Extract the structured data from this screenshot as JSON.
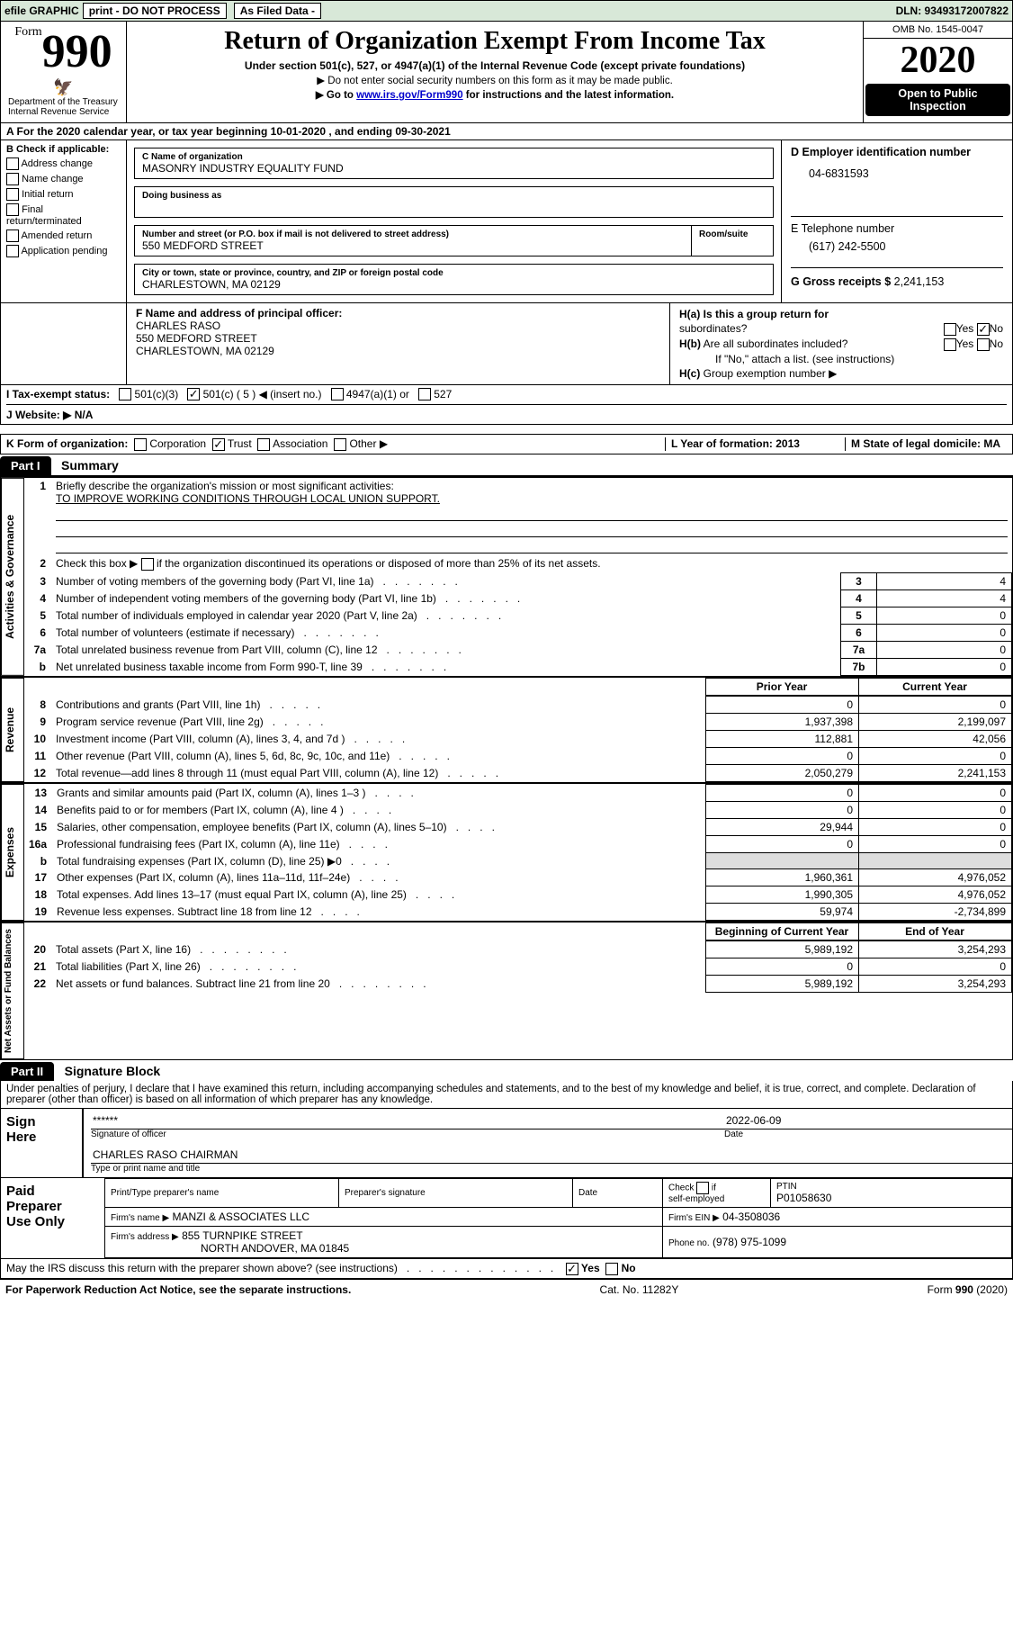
{
  "topbar": {
    "efile": "efile GRAPHIC",
    "print": "print - DO NOT PROCESS",
    "asFiled": "As Filed Data - ",
    "dln": "DLN: 93493172007822"
  },
  "formHeader": {
    "formWord": "Form",
    "formNumber": "990",
    "deptLine1": "Department of the Treasury",
    "deptLine2": "Internal Revenue Service",
    "title": "Return of Organization Exempt From Income Tax",
    "subtitle": "Under section 501(c), 527, or 4947(a)(1) of the Internal Revenue Code (except private foundations)",
    "warning": "▶ Do not enter social security numbers on this form as it may be made public.",
    "instructions": "▶ Go to www.irs.gov/Form990 for instructions and the latest information.",
    "omb": "OMB No. 1545-0047",
    "year": "2020",
    "inspectionLine1": "Open to Public",
    "inspectionLine2": "Inspection"
  },
  "rowA": "A   For the 2020 calendar year, or tax year beginning 10-01-2020   , and ending 09-30-2021",
  "sectionB": {
    "title": "B Check if applicable:",
    "checks": [
      "Address change",
      "Name change",
      "Initial return",
      "Final return/terminated",
      "Amended return",
      "Application pending"
    ]
  },
  "sectionC": {
    "labelName": "C Name of organization",
    "orgName": "MASONRY INDUSTRY EQUALITY FUND",
    "dbaLabel": "Doing business as",
    "streetLabel": "Number and street (or P.O. box if mail is not delivered to street address)",
    "roomLabel": "Room/suite",
    "street": "550 MEDFORD STREET",
    "cityLabel": "City or town, state or province, country, and ZIP or foreign postal code",
    "city": "CHARLESTOWN, MA  02129"
  },
  "sectionD": {
    "label": "D Employer identification number",
    "ein": "04-6831593"
  },
  "sectionE": {
    "label": "E Telephone number",
    "phone": "(617) 242-5500"
  },
  "sectionG": {
    "label": "G Gross receipts $",
    "value": "2,241,153"
  },
  "sectionF": {
    "label": "F   Name and address of principal officer:",
    "name": "CHARLES RASO",
    "street": "550 MEDFORD STREET",
    "city": "CHARLESTOWN, MA  02129"
  },
  "sectionH": {
    "ha": "H(a)  Is this a group return for",
    "haLine2": "subordinates?",
    "hb": "H(b)  Are all subordinates included?",
    "hbNote": "If \"No,\" attach a list. (see instructions)",
    "hc": "H(c)  Group exemption number ▶",
    "yes": "Yes",
    "no": "No"
  },
  "rowI": {
    "label": "I   Tax-exempt status:",
    "opt1": "501(c)(3)",
    "opt2": "501(c) ( 5 ) ◀ (insert no.)",
    "opt3": "4947(a)(1) or",
    "opt4": "527"
  },
  "rowJ": "J   Website: ▶   N/A",
  "rowK": {
    "label": "K Form of organization:",
    "opts": [
      "Corporation",
      "Trust",
      "Association",
      "Other ▶"
    ]
  },
  "rowL": "L Year of formation: 2013",
  "rowM": "M State of legal domicile: MA",
  "part1": {
    "label": "Part I",
    "title": "Summary"
  },
  "summary": {
    "line1": "Briefly describe the organization's mission or most significant activities:",
    "mission": "TO IMPROVE WORKING CONDITIONS THROUGH LOCAL UNION SUPPORT.",
    "line2": "Check this box ▶        if the organization discontinued its operations or disposed of more than 25% of its net assets.",
    "rows": [
      {
        "n": "3",
        "t": "Number of voting members of the governing body (Part VI, line 1a)",
        "rl": "3",
        "rv": "4"
      },
      {
        "n": "4",
        "t": "Number of independent voting members of the governing body (Part VI, line 1b)",
        "rl": "4",
        "rv": "4"
      },
      {
        "n": "5",
        "t": "Total number of individuals employed in calendar year 2020 (Part V, line 2a)",
        "rl": "5",
        "rv": "0"
      },
      {
        "n": "6",
        "t": "Total number of volunteers (estimate if necessary)",
        "rl": "6",
        "rv": "0"
      },
      {
        "n": "7a",
        "t": "Total unrelated business revenue from Part VIII, column (C), line 12",
        "rl": "7a",
        "rv": "0"
      },
      {
        "n": "b",
        "t": "Net unrelated business taxable income from Form 990-T, line 39",
        "rl": "7b",
        "rv": "0"
      }
    ],
    "priorHeader": "Prior Year",
    "currentHeader": "Current Year",
    "revenue": [
      {
        "n": "8",
        "t": "Contributions and grants (Part VIII, line 1h)",
        "p": "0",
        "c": "0"
      },
      {
        "n": "9",
        "t": "Program service revenue (Part VIII, line 2g)",
        "p": "1,937,398",
        "c": "2,199,097"
      },
      {
        "n": "10",
        "t": "Investment income (Part VIII, column (A), lines 3, 4, and 7d )",
        "p": "112,881",
        "c": "42,056"
      },
      {
        "n": "11",
        "t": "Other revenue (Part VIII, column (A), lines 5, 6d, 8c, 9c, 10c, and 11e)",
        "p": "0",
        "c": "0"
      },
      {
        "n": "12",
        "t": "Total revenue—add lines 8 through 11 (must equal Part VIII, column (A), line 12)",
        "p": "2,050,279",
        "c": "2,241,153"
      }
    ],
    "expenses": [
      {
        "n": "13",
        "t": "Grants and similar amounts paid (Part IX, column (A), lines 1–3 )",
        "p": "0",
        "c": "0"
      },
      {
        "n": "14",
        "t": "Benefits paid to or for members (Part IX, column (A), line 4 )",
        "p": "0",
        "c": "0"
      },
      {
        "n": "15",
        "t": "Salaries, other compensation, employee benefits (Part IX, column (A), lines 5–10)",
        "p": "29,944",
        "c": "0"
      },
      {
        "n": "16a",
        "t": "Professional fundraising fees (Part IX, column (A), line 11e)",
        "p": "0",
        "c": "0"
      },
      {
        "n": "b",
        "t": "Total fundraising expenses (Part IX, column (D), line 25) ▶0",
        "p": "",
        "c": ""
      },
      {
        "n": "17",
        "t": "Other expenses (Part IX, column (A), lines 11a–11d, 11f–24e)",
        "p": "1,960,361",
        "c": "4,976,052"
      },
      {
        "n": "18",
        "t": "Total expenses. Add lines 13–17 (must equal Part IX, column (A), line 25)",
        "p": "1,990,305",
        "c": "4,976,052"
      },
      {
        "n": "19",
        "t": "Revenue less expenses. Subtract line 18 from line 12",
        "p": "59,974",
        "c": "-2,734,899"
      }
    ],
    "balHeader1": "Beginning of Current Year",
    "balHeader2": "End of Year",
    "balances": [
      {
        "n": "20",
        "t": "Total assets (Part X, line 16)",
        "p": "5,989,192",
        "c": "3,254,293"
      },
      {
        "n": "21",
        "t": "Total liabilities (Part X, line 26)",
        "p": "0",
        "c": "0"
      },
      {
        "n": "22",
        "t": "Net assets or fund balances. Subtract line 21 from line 20",
        "p": "5,989,192",
        "c": "3,254,293"
      }
    ]
  },
  "vertLabels": {
    "ag": "Activities & Governance",
    "rev": "Revenue",
    "exp": "Expenses",
    "bal": "Net Assets or Fund Balances"
  },
  "part2": {
    "label": "Part II",
    "title": "Signature Block",
    "perjury": "Under penalties of perjury, I declare that I have examined this return, including accompanying schedules and statements, and to the best of my knowledge and belief, it is true, correct, and complete. Declaration of preparer (other than officer) is based on all information of which preparer has any knowledge."
  },
  "sign": {
    "label": "Sign Here",
    "stars": "******",
    "sigLabel": "Signature of officer",
    "date": "2022-06-09",
    "dateLabel": "Date",
    "nameTitle": "CHARLES RASO CHAIRMAN",
    "typeLabel": "Type or print name and title"
  },
  "preparer": {
    "label": "Paid Preparer Use Only",
    "printLabel": "Print/Type preparer's name",
    "sigLabel": "Preparer's signature",
    "dateLabel": "Date",
    "selfEmp": "Check         if self-employed",
    "ptinLabel": "PTIN",
    "ptin": "P01058630",
    "firmLabel": "Firm's name    ▶",
    "firmName": "MANZI & ASSOCIATES LLC",
    "einLabel": "Firm's EIN ▶",
    "ein": "04-3508036",
    "addrLabel": "Firm's address ▶",
    "addr1": "855 TURNPIKE STREET",
    "addr2": "NORTH ANDOVER, MA  01845",
    "phoneLabel": "Phone no.",
    "phone": "(978) 975-1099"
  },
  "discuss": "May the IRS discuss this return with the preparer shown above? (see instructions)",
  "footer": {
    "left": "For Paperwork Reduction Act Notice, see the separate instructions.",
    "mid": "Cat. No. 11282Y",
    "right": "Form 990 (2020)"
  }
}
